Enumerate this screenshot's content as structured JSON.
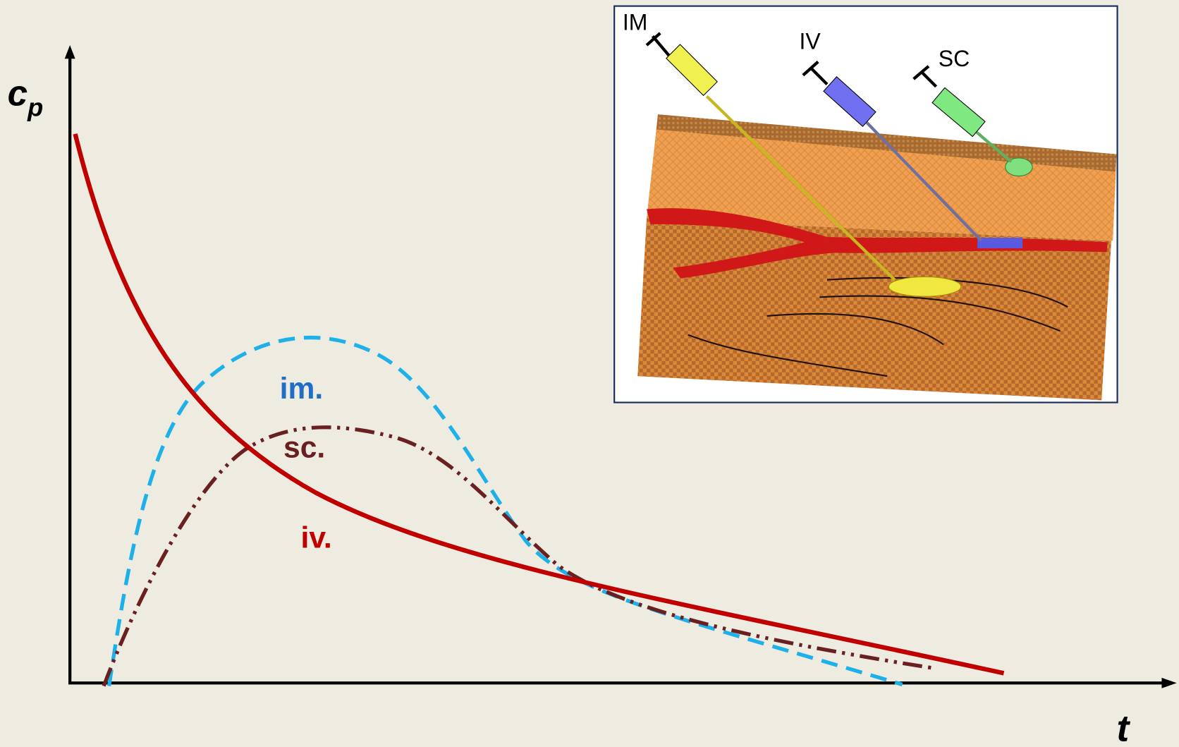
{
  "axes": {
    "y_label": "c",
    "y_subscript": "p",
    "x_label": "t"
  },
  "curves": [
    {
      "label": "im."
    },
    {
      "label": "sc."
    },
    {
      "label": "iv."
    }
  ],
  "inset": {
    "labels": [
      "IM",
      "IV",
      "SC"
    ]
  }
}
